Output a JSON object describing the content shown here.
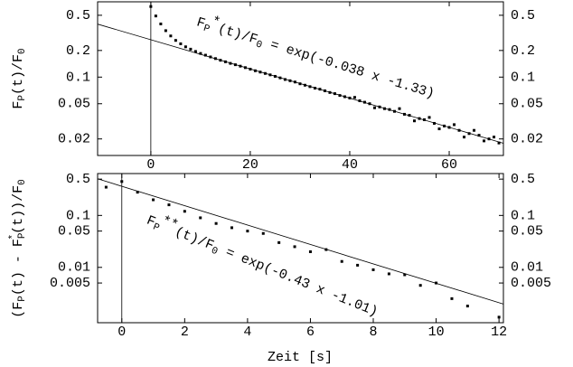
{
  "chart_data": [
    {
      "type": "scatter",
      "log_y": true,
      "color": "#000000",
      "ylabel": [
        "F",
        "P",
        "(t)/F",
        "0"
      ],
      "annotation": [
        "F",
        "P",
        "*",
        "(t)/F",
        "0",
        " = exp(-0.038 x -1.33)"
      ],
      "fit": {
        "slope": -0.038,
        "intercept": -1.33
      },
      "xlim": [
        -10.7,
        70.9
      ],
      "ylim": [
        0.013,
        0.71
      ],
      "xticks": [
        0,
        20,
        40,
        60
      ],
      "yticks": [
        0.5,
        0.2,
        0.1,
        0.05,
        0.02
      ],
      "x": [
        0,
        1,
        2,
        3,
        4,
        5,
        6,
        7,
        8,
        9,
        10,
        11,
        12,
        13,
        14,
        15,
        16,
        17,
        18,
        19,
        20,
        21,
        22,
        23,
        24,
        25,
        26,
        27,
        28,
        29,
        30,
        31,
        32,
        33,
        34,
        35,
        36,
        37,
        38,
        39,
        40,
        41,
        42,
        43,
        44,
        45,
        46,
        47,
        48,
        49,
        50,
        51,
        52,
        53,
        54,
        55,
        56,
        57,
        58,
        59,
        60,
        61,
        62,
        63,
        64,
        65,
        66,
        67,
        68,
        69,
        70
      ],
      "values": [
        0.628,
        0.491,
        0.399,
        0.335,
        0.292,
        0.26,
        0.238,
        0.22,
        0.207,
        0.195,
        0.185,
        0.177,
        0.169,
        0.162,
        0.155,
        0.149,
        0.143,
        0.138,
        0.133,
        0.128,
        0.123,
        0.118,
        0.114,
        0.11,
        0.106,
        0.102,
        0.098,
        0.094,
        0.091,
        0.088,
        0.084,
        0.081,
        0.078,
        0.075,
        0.073,
        0.07,
        0.067,
        0.065,
        0.062,
        0.06,
        0.058,
        0.059,
        0.054,
        0.052,
        0.05,
        0.045,
        0.046,
        0.044,
        0.043,
        0.041,
        0.044,
        0.038,
        0.037,
        0.032,
        0.034,
        0.033,
        0.035,
        0.03,
        0.026,
        0.028,
        0.027,
        0.029,
        0.025,
        0.021,
        0.023,
        0.025,
        0.022,
        0.019,
        0.02,
        0.021,
        0.018
      ]
    },
    {
      "type": "scatter",
      "log_y": true,
      "color": "#000000",
      "ylabel": [
        "(F",
        "P",
        "(t) - F",
        "P",
        "*",
        "(t))/F",
        "0"
      ],
      "xlabel": "Zeit  [s]",
      "annotation": [
        "F",
        "P",
        "**",
        "(t)/F",
        "0",
        " = exp(-0.43 x -1.01)"
      ],
      "fit": {
        "slope": -0.43,
        "intercept": -1.01
      },
      "xlim": [
        -0.77,
        12.14
      ],
      "ylim": [
        0.00086,
        0.64
      ],
      "xticks": [
        0,
        2,
        4,
        6,
        8,
        10,
        12
      ],
      "yticks": [
        0.5,
        0.1,
        0.05,
        0.01,
        0.005
      ],
      "x": [
        -0.5,
        0,
        0.5,
        1,
        1.5,
        2,
        2.5,
        3,
        3.5,
        4,
        4.5,
        5,
        5.5,
        6,
        6.5,
        7,
        7.5,
        8,
        8.5,
        9,
        9.5,
        10,
        10.5,
        11,
        12
      ],
      "values": [
        0.35,
        0.45,
        0.28,
        0.2,
        0.16,
        0.12,
        0.09,
        0.07,
        0.058,
        0.05,
        0.045,
        0.03,
        0.025,
        0.02,
        0.022,
        0.013,
        0.011,
        0.009,
        0.0075,
        0.0072,
        0.0045,
        0.005,
        0.0025,
        0.0018,
        0.0011
      ]
    }
  ]
}
